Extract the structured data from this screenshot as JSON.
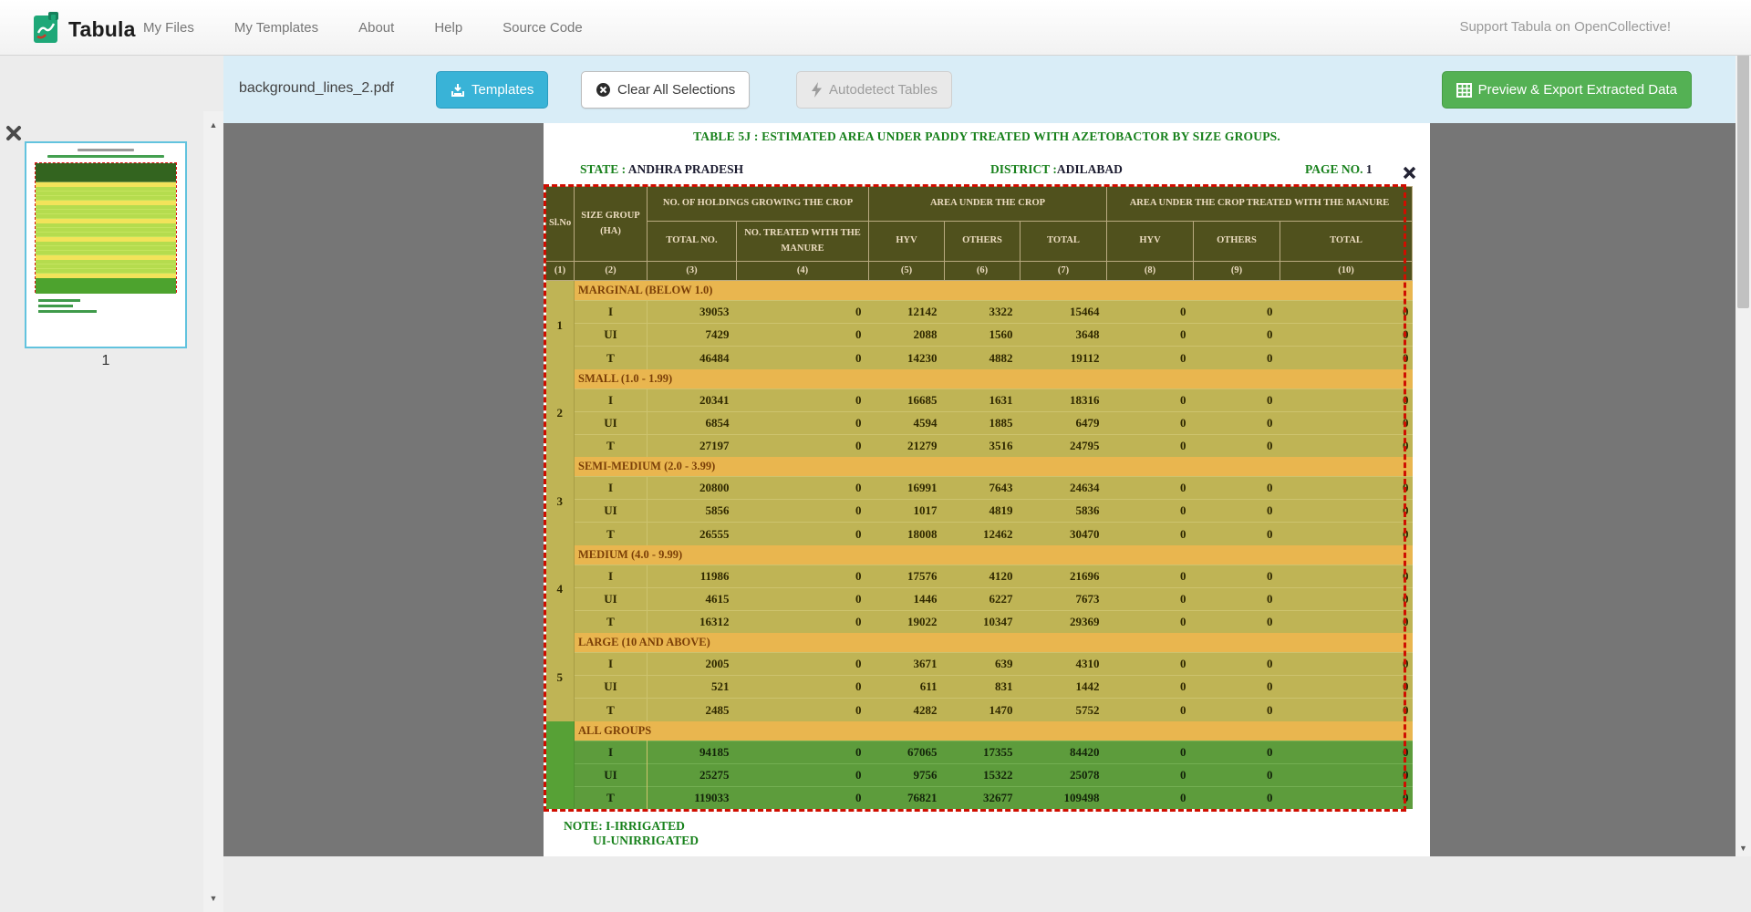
{
  "navbar": {
    "brand": "Tabula",
    "links": [
      "My Files",
      "My Templates",
      "About",
      "Help",
      "Source Code"
    ],
    "support": "Support Tabula on OpenCollective!"
  },
  "sidebar": {
    "page_number": "1"
  },
  "toolbar": {
    "filename": "background_lines_2.pdf",
    "templates_label": "Templates",
    "clear_label": "Clear All Selections",
    "autodetect_label": "Autodetect Tables",
    "export_label": "Preview & Export Extracted Data",
    "accent_blue": "#39b3d7",
    "accent_green": "#54b154"
  },
  "pdf": {
    "title": "TABLE 5J : ESTIMATED AREA UNDER PADDY  TREATED WITH AZETOBACTOR BY SIZE GROUPS.",
    "state_label": "STATE :",
    "state_value": "ANDHRA PRADESH",
    "district_label": "DISTRICT :",
    "district_value": "ADILABAD",
    "page_label": "PAGE NO.",
    "page_value": "1",
    "note_line1": "NOTE: I-IRRIGATED",
    "note_line2": "UI-UNIRRIGATED",
    "table": {
      "h1": [
        "Sl.No",
        "SIZE GROUP (HA)",
        "NO. OF HOLDINGS GROWING THE CROP",
        "AREA UNDER THE CROP",
        "AREA UNDER THE CROP TREATED WITH THE  MANURE"
      ],
      "h2": [
        "TOTAL NO.",
        "NO. TREATED WITH THE  MANURE",
        "HYV",
        "OTHERS",
        "TOTAL",
        "HYV",
        "OTHERS",
        "TOTAL"
      ],
      "h3": [
        "(1)",
        "(2)",
        "(3)",
        "(4)",
        "(5)",
        "(6)",
        "(7)",
        "(8)",
        "(9)",
        "(10)"
      ],
      "sections": [
        {
          "slno": "1",
          "label": "MARGINAL (BELOW 1.0)",
          "all_groups": false,
          "rows": [
            [
              "I",
              "39053",
              "0",
              "12142",
              "3322",
              "15464",
              "0",
              "0",
              "0"
            ],
            [
              "UI",
              "7429",
              "0",
              "2088",
              "1560",
              "3648",
              "0",
              "0",
              "0"
            ],
            [
              "T",
              "46484",
              "0",
              "14230",
              "4882",
              "19112",
              "0",
              "0",
              "0"
            ]
          ]
        },
        {
          "slno": "2",
          "label": "SMALL (1.0 - 1.99)",
          "all_groups": false,
          "rows": [
            [
              "I",
              "20341",
              "0",
              "16685",
              "1631",
              "18316",
              "0",
              "0",
              "0"
            ],
            [
              "UI",
              "6854",
              "0",
              "4594",
              "1885",
              "6479",
              "0",
              "0",
              "0"
            ],
            [
              "T",
              "27197",
              "0",
              "21279",
              "3516",
              "24795",
              "0",
              "0",
              "0"
            ]
          ]
        },
        {
          "slno": "3",
          "label": "SEMI-MEDIUM (2.0 - 3.99)",
          "all_groups": false,
          "rows": [
            [
              "I",
              "20800",
              "0",
              "16991",
              "7643",
              "24634",
              "0",
              "0",
              "0"
            ],
            [
              "UI",
              "5856",
              "0",
              "1017",
              "4819",
              "5836",
              "0",
              "0",
              "0"
            ],
            [
              "T",
              "26555",
              "0",
              "18008",
              "12462",
              "30470",
              "0",
              "0",
              "0"
            ]
          ]
        },
        {
          "slno": "4",
          "label": "MEDIUM (4.0 - 9.99)",
          "all_groups": false,
          "rows": [
            [
              "I",
              "11986",
              "0",
              "17576",
              "4120",
              "21696",
              "0",
              "0",
              "0"
            ],
            [
              "UI",
              "4615",
              "0",
              "1446",
              "6227",
              "7673",
              "0",
              "0",
              "0"
            ],
            [
              "T",
              "16312",
              "0",
              "19022",
              "10347",
              "29369",
              "0",
              "0",
              "0"
            ]
          ]
        },
        {
          "slno": "5",
          "label": "LARGE (10 AND ABOVE)",
          "all_groups": false,
          "rows": [
            [
              "I",
              "2005",
              "0",
              "3671",
              "639",
              "4310",
              "0",
              "0",
              "0"
            ],
            [
              "UI",
              "521",
              "0",
              "611",
              "831",
              "1442",
              "0",
              "0",
              "0"
            ],
            [
              "T",
              "2485",
              "0",
              "4282",
              "1470",
              "5752",
              "0",
              "0",
              "0"
            ]
          ]
        },
        {
          "slno": "",
          "label": "ALL GROUPS",
          "all_groups": true,
          "rows": [
            [
              "I",
              "94185",
              "0",
              "67065",
              "17355",
              "84420",
              "0",
              "0",
              "0"
            ],
            [
              "UI",
              "25275",
              "0",
              "9756",
              "15322",
              "25078",
              "0",
              "0",
              "0"
            ],
            [
              "T",
              "119033",
              "0",
              "76821",
              "32677",
              "109498",
              "0",
              "0",
              "0"
            ]
          ]
        }
      ]
    }
  }
}
